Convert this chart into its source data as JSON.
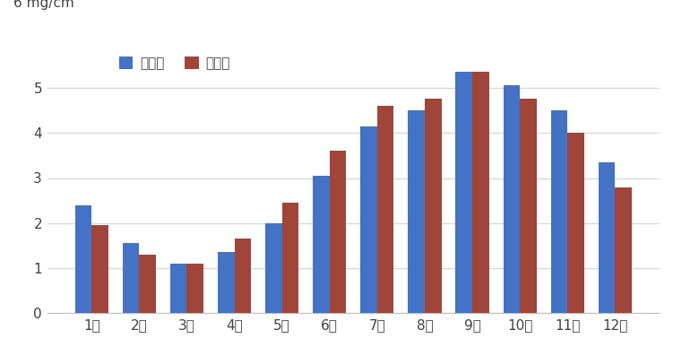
{
  "months": [
    "1月",
    "2月",
    "3月",
    "4月",
    "5月",
    "6月",
    "7月",
    "8月",
    "9月",
    "10月",
    "11月",
    "12月"
  ],
  "male_values": [
    2.4,
    1.55,
    1.1,
    1.35,
    2.0,
    3.05,
    4.15,
    4.5,
    5.35,
    5.05,
    4.5,
    3.35
  ],
  "female_values": [
    1.95,
    1.3,
    1.1,
    1.65,
    2.45,
    3.6,
    4.6,
    4.75,
    5.35,
    4.75,
    4.0,
    2.8
  ],
  "male_color": "#4472C4",
  "female_color": "#A0453A",
  "legend_male": "オス猫",
  "legend_female": "メス猫",
  "ylabel_text": "6 mg/cm",
  "ylim": [
    0,
    6
  ],
  "yticks": [
    0,
    1,
    2,
    3,
    4,
    5
  ],
  "background_color": "#FFFFFF",
  "grid_color": "#D9D9D9",
  "bar_width": 0.35
}
